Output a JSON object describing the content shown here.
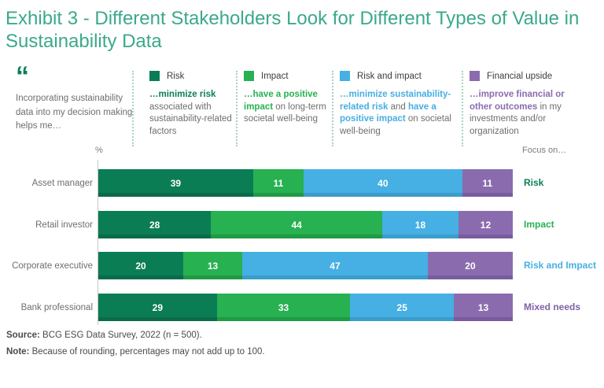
{
  "title": "Exhibit 3 - Different Stakeholders Look for Different Types of Value in Sustainability Data",
  "quote": {
    "mark": "“",
    "text": "Incorporating sustainability data into my decision making helps me…"
  },
  "legend": {
    "items": [
      {
        "label": "Risk",
        "color": "#0B7D55",
        "desc": [
          {
            "t": "…minimize risk",
            "c": "#0B7D55"
          },
          {
            "t": " associated with sustainability-related factors"
          }
        ]
      },
      {
        "label": "Impact",
        "color": "#27B151",
        "desc": [
          {
            "t": "…have a positive impact",
            "c": "#27B151"
          },
          {
            "t": " on long-term societal well-being"
          }
        ]
      },
      {
        "label": "Risk and impact",
        "color": "#46AFE3",
        "desc": [
          {
            "t": "…minimize sustainability-related risk",
            "c": "#46AFE3"
          },
          {
            "t": " and "
          },
          {
            "t": "have a positive impact",
            "c": "#46AFE3"
          },
          {
            "t": " on societal well-being"
          }
        ]
      },
      {
        "label": "Financial upside",
        "color": "#8A6CAE",
        "desc": [
          {
            "t": "…improve financial or other outcomes",
            "c": "#8A6CAE"
          },
          {
            "t": " in my investments and/or organization"
          }
        ]
      }
    ]
  },
  "chart_data": {
    "type": "bar",
    "orientation": "horizontal-stacked",
    "unit_label": "%",
    "focus_header": "Focus on…",
    "xlim": [
      0,
      100
    ],
    "categories": [
      "Asset manager",
      "Retail investor",
      "Corporate executive",
      "Bank professional"
    ],
    "series": [
      {
        "name": "Risk",
        "color": "#0B7D55",
        "edge": "#0A6B4A",
        "values": [
          39,
          28,
          20,
          29
        ]
      },
      {
        "name": "Impact",
        "color": "#27B151",
        "edge": "#1F9A45",
        "values": [
          11,
          44,
          13,
          33
        ]
      },
      {
        "name": "Risk and impact",
        "color": "#46AFE3",
        "edge": "#3A9DCB",
        "values": [
          40,
          18,
          47,
          25
        ]
      },
      {
        "name": "Financial upside",
        "color": "#8A6CAE",
        "edge": "#785C9F",
        "values": [
          11,
          12,
          20,
          13
        ]
      }
    ],
    "focus_labels": [
      {
        "text": "Risk",
        "color": "#0B7D55"
      },
      {
        "text": "Impact",
        "color": "#27B151"
      },
      {
        "text": "Risk and Impact",
        "color": "#46AFE3"
      },
      {
        "text": "Mixed needs",
        "color": "#7E62A6"
      }
    ]
  },
  "footer": {
    "source_label": "Source:",
    "source_text": " BCG ESG Data Survey, 2022 (n = 500).",
    "note_label": "Note:",
    "note_text": " Because of rounding, percentages may not add up to 100."
  }
}
